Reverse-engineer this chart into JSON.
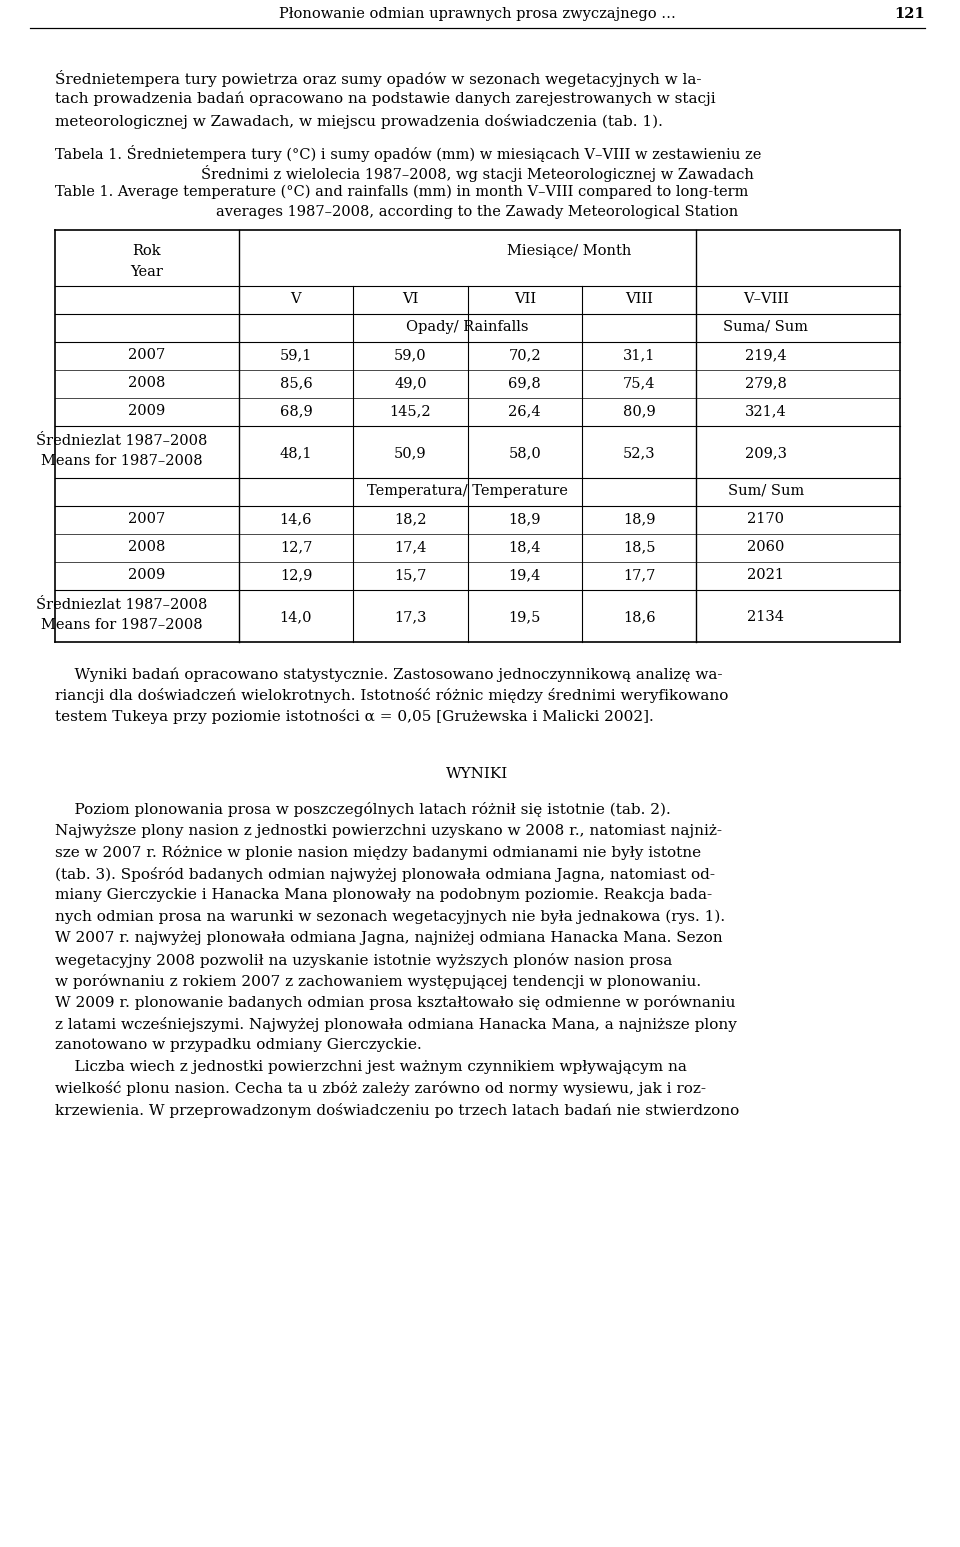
{
  "header_text": "Płonowanie odmian uprawnych prosa zwyczajnego …",
  "header_page": "121",
  "intro_text": "Średnietempera tury powietrza oraz sumy opadów w sezonach wegetacyjnych w la-\ntach prowadzenia badań opracowano na podstawie danych zarejestrowanych w stacji\nmeteoro lo gicznej w Zawadach, w miejscu prowadzenia doświadczenia (tab. 1).",
  "table_title_pl": "Tabela 1. Średnietempera tury (°C) i sumy opadów (mm) w miesiącach V–VIII w zestawieniu ze",
  "table_title_pl2": "Średnimi z wielolecia 1987–2008, wg stacji Meteorologicznej w Zawadach",
  "table_title_en": "Table 1. Average temperature (°C) and rainfalls (mm) in month V–VIII compared to long-term",
  "table_title_en2": "averages 1987–2008, according to the Zawady Meteorological Station",
  "col_header1": "Miesiące/ Month",
  "col_header_row": [
    "V",
    "VI",
    "VII",
    "VIII",
    "V–VIII"
  ],
  "row_sub1": "Opady/ Rainfalls",
  "row_sub2": "Suma/ Sum",
  "rain_data": [
    [
      "2007",
      "59,1",
      "59,0",
      "70,2",
      "31,1",
      "219,4"
    ],
    [
      "2008",
      "85,6",
      "49,0",
      "69,8",
      "75,4",
      "279,8"
    ],
    [
      "2009",
      "68,9",
      "145,2",
      "26,4",
      "80,9",
      "321,4"
    ]
  ],
  "rain_means_label1": "Średniezlat 1987–2008",
  "rain_means_label2": "Means for 1987–2008",
  "rain_means_data": [
    "48,1",
    "50,9",
    "58,0",
    "52,3",
    "209,3"
  ],
  "temp_sub1": "Temperatura/ Temperature",
  "temp_sub2": "Sum/ Sum",
  "temp_data": [
    [
      "2007",
      "14,6",
      "18,2",
      "18,9",
      "18,9",
      "2170"
    ],
    [
      "2008",
      "12,7",
      "17,4",
      "18,4",
      "18,5",
      "2060"
    ],
    [
      "2009",
      "12,9",
      "15,7",
      "19,4",
      "17,7",
      "2021"
    ]
  ],
  "temp_means_label1": "Średniezlat 1987–2008",
  "temp_means_label2": "Means for 1987–2008",
  "temp_means_data": [
    "14,0",
    "17,3",
    "19,5",
    "18,6",
    "2134"
  ],
  "after_table_text": "    Wyniki badań opracowano statystycznie. Zastosowano jednoczynnikową analizę wa-\nriancji dla doświadczeń wielokrotnych. Istotność różnic między średnimi weryfikowano\ntestem Tukeya przy poziomie istotności α = 0,05 [Grużewska i Malicki 2002].",
  "wyniki_title": "WYNIKI",
  "wyniki_body": "    Poziom plonowania prosa w poszczególnych latach różnił się istotnie (tab. 2).\nNajwyższe plony nasion z jednostki powierzchni uzyskano w 2008 r., natomiast najniż-\nsze w 2007 r. Różnice w plonie nasion między badanymi odmianami nie były istotne\n(tab. 3). Spośród badanych odmian najwyżej plonowała odmiana Jagna, natomiast od-\nmiany Gierczyckie i Hanacka Mana plonowały na podobnym poziomie. Reakcja bada-\nnych odmian prosa na warunki w sezonach wegetacyjnych nie była jednakowa (rys. 1).\nW 2007 r. najwyżej plonowała odmiana Jagna, najniżej odmiana Hanacka Mana. Sezon\nwegetacyjny 2008 pozwolił na uzyskanie istotnie wyższych plonów nasion prosa\nw porównaniu z rokiem 2007 z zachowaniem występującej tendencji w plonowaniu.\nW 2009 r. plonowanie badanych odmian prosa kształtowało się odmienne w porównaniu\nz latami wcześniejszymi. Najwyżej plonowała odmiana Hanacka Mana, a najniższe plony\nzanotowano w przypadku odmiany Gierczyckie.\n    Liczba wiech z jednostki powierzchni jest ważnym czynnikiem wpływającym na\nwielkość plonu nasion. Cecha ta u zbóż zależy zarówno od normy wysiewu, jak i roz-\nkrzewienia. W przeprowadzonym doświadczeniu po trzech latach badań nie stwierdzono"
}
